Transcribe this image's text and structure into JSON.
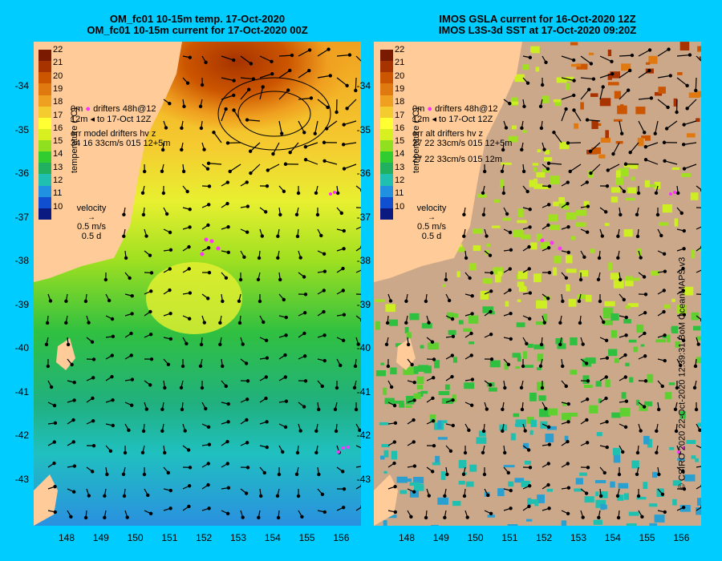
{
  "left_panel": {
    "title_line1": "OM_fc01 10-15m temp. 17-Oct-2020",
    "title_line2": "OM_fc01 10-15m current for 17-Oct-2020 00Z",
    "legend_drifter_line1": "drifters 48h@12",
    "legend_drifter_line2": "to 17-Oct 12Z",
    "legend_depth_top": "0m",
    "legend_depth_bottom": "12m",
    "err_label": "err model drifters hv z",
    "err_values": "34 16 33cm/s 015 12+5m",
    "err_values2": ""
  },
  "right_panel": {
    "title_line1": "IMOS GSLA current for 16-Oct-2020 12Z",
    "title_line2": "IMOS L3S-3d SST at 17-Oct-2020 09:20Z",
    "legend_drifter_line1": "drifters 48h@12",
    "legend_drifter_line2": "to 17-Oct 12Z",
    "legend_depth_top": "0m",
    "legend_depth_bottom": "12m",
    "err_label": "err alt drifters hv z",
    "err_values": "27 22 33cm/s 015 12+5m",
    "err_values2": "27 22 33cm/s 015 12m"
  },
  "colorbar": {
    "label": "temperature (°C)",
    "ticks": [
      "22",
      "21",
      "20",
      "19",
      "18",
      "17",
      "16",
      "15",
      "14",
      "13",
      "12",
      "11",
      "10"
    ],
    "colors": [
      "#7a1a00",
      "#a63300",
      "#cc5500",
      "#e07a10",
      "#f0a020",
      "#f5cc30",
      "#ffff33",
      "#d8f020",
      "#90e020",
      "#30cc30",
      "#20b060",
      "#20c0b0",
      "#2090e0",
      "#1050d0",
      "#0a1a80"
    ]
  },
  "velocity_legend": {
    "title": "velocity",
    "speed": "0.5 m/s",
    "duration": "0.5 d"
  },
  "axes": {
    "y_ticks": [
      "-34",
      "-35",
      "-36",
      "-37",
      "-38",
      "-39",
      "-40",
      "-41",
      "-42",
      "-43"
    ],
    "x_ticks": [
      "148",
      "149",
      "150",
      "151",
      "152",
      "153",
      "154",
      "155",
      "156"
    ]
  },
  "credit": "© CSIRO 2020   22-Oct-2020 12:39:31 BoM OceanMAPS v3"
}
